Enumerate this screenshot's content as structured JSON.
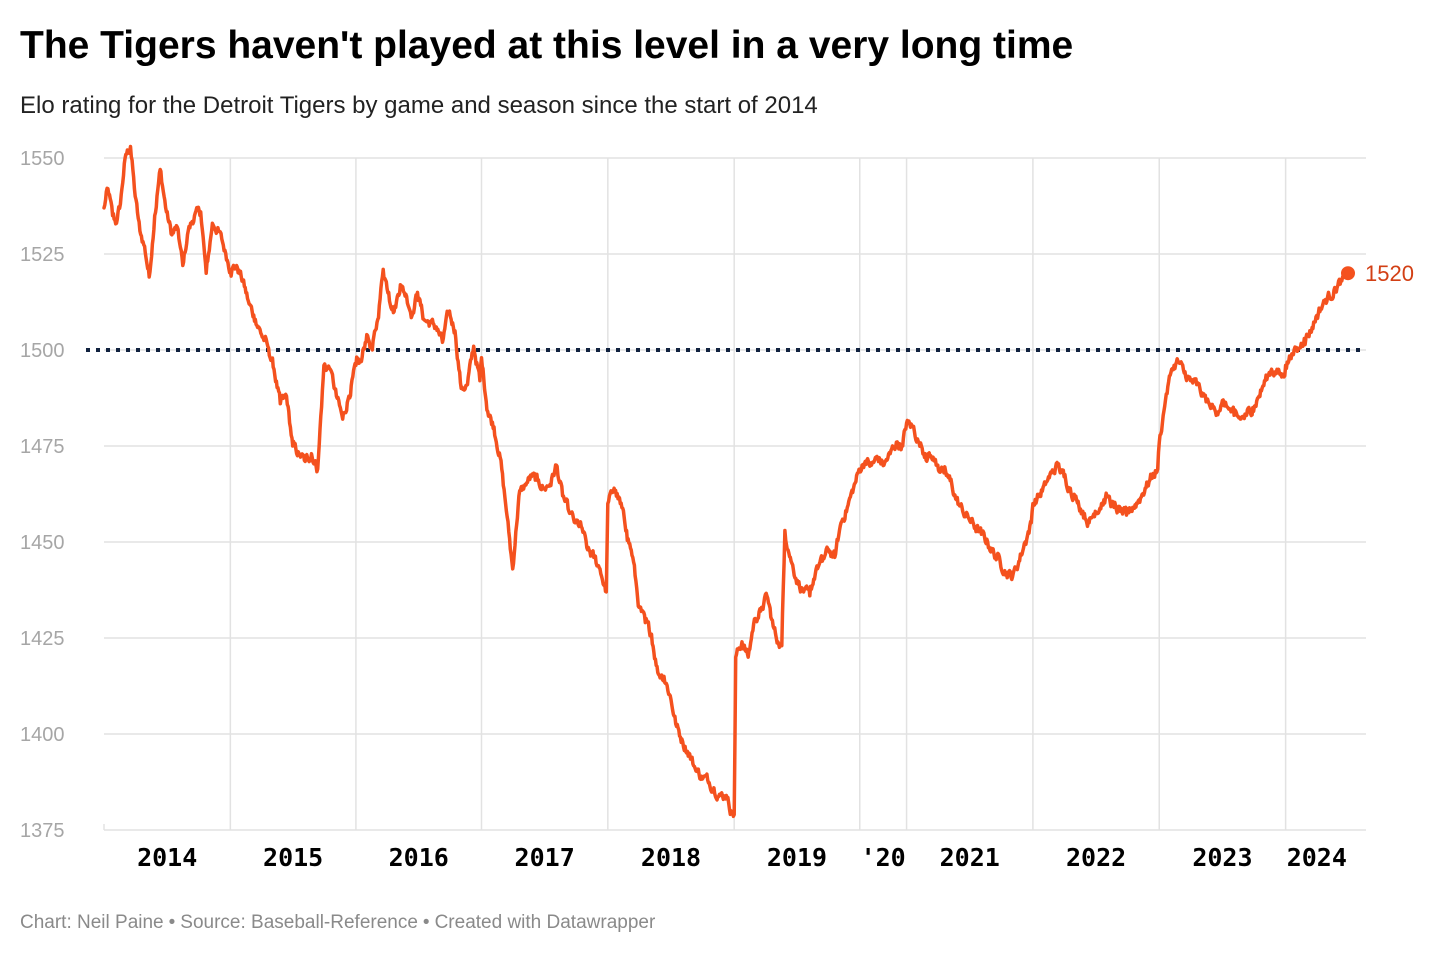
{
  "header": {
    "title": "The Tigers haven't played at this level in a very long time",
    "subtitle": "Elo rating for the Detroit Tigers by game and season since the start of 2014"
  },
  "footer": {
    "chart_credit": "Chart: Neil Paine",
    "source": "Source: Baseball-Reference",
    "made_with": "Created with Datawrapper",
    "separator": "•"
  },
  "colors": {
    "line": "#f4511e",
    "reference_line": "#11223f",
    "grid": "#e2e2e2",
    "tick_text": "#a6a6a6",
    "season_text": "#000000",
    "end_label": "#d23f14"
  },
  "chart_data": {
    "type": "line",
    "title": "The Tigers haven't played at this level in a very long time",
    "subtitle": "Elo rating for the Detroit Tigers by game and season since the start of 2014",
    "xlabel": "",
    "ylabel": "",
    "ylim": [
      1375,
      1550
    ],
    "yticks": [
      1375,
      1400,
      1425,
      1450,
      1475,
      1500,
      1525,
      1550
    ],
    "grid": true,
    "legend": "none",
    "reference_line": {
      "y": 1500,
      "style": "dotted"
    },
    "end_label": "1520",
    "x_unit": "game",
    "season_labels": [
      {
        "label": "2014",
        "start_game": 0
      },
      {
        "label": "2015",
        "start_game": 162
      },
      {
        "label": "2016",
        "start_game": 323
      },
      {
        "label": "2017",
        "start_game": 484
      },
      {
        "label": "2018",
        "start_game": 646
      },
      {
        "label": "2019",
        "start_game": 808
      },
      {
        "label": "'20",
        "start_game": 969
      },
      {
        "label": "2021",
        "start_game": 1029
      },
      {
        "label": "2022",
        "start_game": 1191
      },
      {
        "label": "2023",
        "start_game": 1353
      },
      {
        "label": "2024",
        "start_game": 1515
      }
    ],
    "season_boundaries": [
      0,
      162,
      323,
      484,
      646,
      808,
      969,
      1029,
      1191,
      1353,
      1515,
      1677
    ],
    "series": [
      {
        "values_by_game": [
          [
            0,
            1537
          ],
          [
            5,
            1542
          ],
          [
            11,
            1535
          ],
          [
            16,
            1533
          ],
          [
            21,
            1538
          ],
          [
            27,
            1550
          ],
          [
            34,
            1553
          ],
          [
            40,
            1540
          ],
          [
            46,
            1531
          ],
          [
            52,
            1527
          ],
          [
            58,
            1519
          ],
          [
            65,
            1535
          ],
          [
            72,
            1547
          ],
          [
            80,
            1536
          ],
          [
            87,
            1530
          ],
          [
            94,
            1532
          ],
          [
            101,
            1522
          ],
          [
            108,
            1531
          ],
          [
            116,
            1535
          ],
          [
            124,
            1536
          ],
          [
            131,
            1520
          ],
          [
            139,
            1533
          ],
          [
            147,
            1531
          ],
          [
            155,
            1526
          ],
          [
            162,
            1521
          ],
          [
            170,
            1522
          ],
          [
            178,
            1518
          ],
          [
            186,
            1512
          ],
          [
            194,
            1508
          ],
          [
            202,
            1504
          ],
          [
            210,
            1501
          ],
          [
            218,
            1495
          ],
          [
            226,
            1486
          ],
          [
            234,
            1488
          ],
          [
            242,
            1475
          ],
          [
            250,
            1473
          ],
          [
            258,
            1471
          ],
          [
            266,
            1473
          ],
          [
            274,
            1469
          ],
          [
            282,
            1496
          ],
          [
            290,
            1495
          ],
          [
            298,
            1488
          ],
          [
            306,
            1482
          ],
          [
            314,
            1488
          ],
          [
            323,
            1496
          ],
          [
            330,
            1497
          ],
          [
            337,
            1504
          ],
          [
            344,
            1500
          ],
          [
            351,
            1508
          ],
          [
            358,
            1521
          ],
          [
            365,
            1515
          ],
          [
            372,
            1510
          ],
          [
            380,
            1517
          ],
          [
            388,
            1514
          ],
          [
            395,
            1509
          ],
          [
            402,
            1515
          ],
          [
            410,
            1508
          ],
          [
            418,
            1507
          ],
          [
            426,
            1506
          ],
          [
            434,
            1502
          ],
          [
            442,
            1510
          ],
          [
            450,
            1505
          ],
          [
            458,
            1490
          ],
          [
            466,
            1491
          ],
          [
            474,
            1501
          ],
          [
            482,
            1492
          ],
          [
            484,
            1498
          ],
          [
            492,
            1484
          ],
          [
            500,
            1480
          ],
          [
            508,
            1472
          ],
          [
            516,
            1458
          ],
          [
            524,
            1443
          ],
          [
            532,
            1462
          ],
          [
            540,
            1465
          ],
          [
            548,
            1467
          ],
          [
            556,
            1466
          ],
          [
            564,
            1464
          ],
          [
            572,
            1465
          ],
          [
            580,
            1470
          ],
          [
            588,
            1462
          ],
          [
            596,
            1458
          ],
          [
            604,
            1455
          ],
          [
            612,
            1454
          ],
          [
            620,
            1448
          ],
          [
            628,
            1446
          ],
          [
            636,
            1443
          ],
          [
            644,
            1437
          ],
          [
            646,
            1460
          ],
          [
            654,
            1464
          ],
          [
            662,
            1460
          ],
          [
            670,
            1453
          ],
          [
            678,
            1446
          ],
          [
            686,
            1433
          ],
          [
            694,
            1429
          ],
          [
            702,
            1426
          ],
          [
            710,
            1416
          ],
          [
            718,
            1415
          ],
          [
            726,
            1410
          ],
          [
            734,
            1402
          ],
          [
            742,
            1398
          ],
          [
            750,
            1395
          ],
          [
            758,
            1391
          ],
          [
            766,
            1389
          ],
          [
            774,
            1388
          ],
          [
            782,
            1386
          ],
          [
            790,
            1384
          ],
          [
            798,
            1384
          ],
          [
            804,
            1380
          ],
          [
            808,
            1379
          ],
          [
            810,
            1420
          ],
          [
            818,
            1424
          ],
          [
            826,
            1420
          ],
          [
            834,
            1430
          ],
          [
            842,
            1432
          ],
          [
            850,
            1436
          ],
          [
            858,
            1428
          ],
          [
            864,
            1424
          ],
          [
            869,
            1423
          ],
          [
            873,
            1453
          ],
          [
            881,
            1445
          ],
          [
            889,
            1440
          ],
          [
            897,
            1437
          ],
          [
            905,
            1436
          ],
          [
            913,
            1443
          ],
          [
            921,
            1445
          ],
          [
            929,
            1448
          ],
          [
            937,
            1446
          ],
          [
            945,
            1455
          ],
          [
            953,
            1459
          ],
          [
            961,
            1464
          ],
          [
            969,
            1469
          ],
          [
            976,
            1471
          ],
          [
            984,
            1470
          ],
          [
            992,
            1472
          ],
          [
            1000,
            1470
          ],
          [
            1008,
            1473
          ],
          [
            1016,
            1476
          ],
          [
            1024,
            1475
          ],
          [
            1029,
            1481
          ],
          [
            1037,
            1480
          ],
          [
            1045,
            1476
          ],
          [
            1053,
            1473
          ],
          [
            1061,
            1472
          ],
          [
            1069,
            1470
          ],
          [
            1077,
            1468
          ],
          [
            1085,
            1466
          ],
          [
            1093,
            1461
          ],
          [
            1101,
            1458
          ],
          [
            1109,
            1456
          ],
          [
            1117,
            1454
          ],
          [
            1125,
            1452
          ],
          [
            1133,
            1450
          ],
          [
            1141,
            1447
          ],
          [
            1149,
            1445
          ],
          [
            1157,
            1442
          ],
          [
            1165,
            1441
          ],
          [
            1173,
            1445
          ],
          [
            1181,
            1450
          ],
          [
            1189,
            1455
          ],
          [
            1191,
            1460
          ],
          [
            1199,
            1462
          ],
          [
            1207,
            1465
          ],
          [
            1215,
            1468
          ],
          [
            1223,
            1470
          ],
          [
            1231,
            1467
          ],
          [
            1239,
            1464
          ],
          [
            1247,
            1461
          ],
          [
            1255,
            1458
          ],
          [
            1263,
            1455
          ],
          [
            1271,
            1458
          ],
          [
            1279,
            1460
          ],
          [
            1287,
            1462
          ],
          [
            1295,
            1459
          ],
          [
            1303,
            1458
          ],
          [
            1311,
            1457
          ],
          [
            1319,
            1459
          ],
          [
            1327,
            1461
          ],
          [
            1335,
            1464
          ],
          [
            1343,
            1467
          ],
          [
            1351,
            1469
          ],
          [
            1353,
            1476
          ],
          [
            1361,
            1487
          ],
          [
            1369,
            1495
          ],
          [
            1377,
            1497
          ],
          [
            1385,
            1494
          ],
          [
            1393,
            1492
          ],
          [
            1401,
            1491
          ],
          [
            1409,
            1488
          ],
          [
            1417,
            1486
          ],
          [
            1425,
            1484
          ],
          [
            1433,
            1486
          ],
          [
            1441,
            1485
          ],
          [
            1449,
            1483
          ],
          [
            1457,
            1482
          ],
          [
            1465,
            1483
          ],
          [
            1473,
            1485
          ],
          [
            1481,
            1488
          ],
          [
            1489,
            1492
          ],
          [
            1497,
            1495
          ],
          [
            1505,
            1494
          ],
          [
            1513,
            1493
          ],
          [
            1515,
            1496
          ],
          [
            1523,
            1499
          ],
          [
            1531,
            1500
          ],
          [
            1539,
            1503
          ],
          [
            1547,
            1505
          ],
          [
            1555,
            1509
          ],
          [
            1563,
            1512
          ],
          [
            1571,
            1514
          ],
          [
            1579,
            1516
          ],
          [
            1587,
            1518
          ],
          [
            1595,
            1520
          ]
        ]
      }
    ]
  }
}
